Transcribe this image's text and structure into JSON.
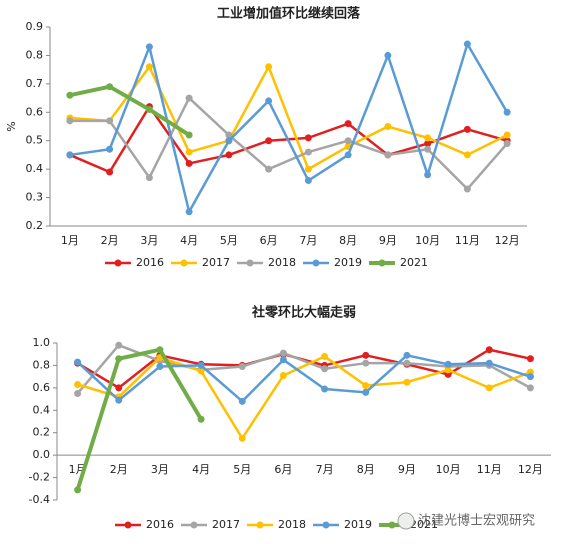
{
  "chart_data": [
    {
      "type": "line",
      "title": "工业增加值环比继续回落",
      "y_label": "%",
      "categories": [
        "1月",
        "2月",
        "3月",
        "4月",
        "5月",
        "6月",
        "7月",
        "8月",
        "9月",
        "10月",
        "11月",
        "12月"
      ],
      "ylim": [
        0.2,
        0.9
      ],
      "yticks": [
        0.2,
        0.3,
        0.4,
        0.5,
        0.6,
        0.7,
        0.8,
        0.9
      ],
      "series": [
        {
          "name": "2016",
          "color": "#e02020",
          "values": [
            0.45,
            0.39,
            0.62,
            0.42,
            0.45,
            0.5,
            0.51,
            0.56,
            0.45,
            0.49,
            0.54,
            0.5
          ]
        },
        {
          "name": "2017",
          "color": "#ffc000",
          "values": [
            0.58,
            0.57,
            0.76,
            0.46,
            0.5,
            0.76,
            0.4,
            0.48,
            0.55,
            0.51,
            0.45,
            0.52
          ]
        },
        {
          "name": "2018",
          "color": "#a5a5a5",
          "values": [
            0.57,
            0.57,
            0.37,
            0.65,
            0.52,
            0.4,
            0.46,
            0.5,
            0.45,
            0.47,
            0.33,
            0.49
          ]
        },
        {
          "name": "2019",
          "color": "#5b9bd5",
          "values": [
            0.45,
            0.47,
            0.83,
            0.25,
            0.5,
            0.64,
            0.36,
            0.45,
            0.8,
            0.38,
            0.84,
            0.6
          ]
        },
        {
          "name": "2021",
          "color": "#70ad47",
          "values": [
            0.66,
            0.69,
            0.61,
            0.52,
            null,
            null,
            null,
            null,
            null,
            null,
            null,
            null
          ]
        }
      ]
    },
    {
      "type": "line",
      "title": "社零环比大幅走弱",
      "categories": [
        "1月",
        "2月",
        "3月",
        "4月",
        "5月",
        "6月",
        "7月",
        "8月",
        "9月",
        "10月",
        "11月",
        "12月"
      ],
      "ylim": [
        -0.4,
        1.0
      ],
      "yticks": [
        -0.4,
        -0.2,
        {
          "value": 0,
          "label": "0.0"
        },
        0.2,
        0.4,
        0.6,
        0.8,
        {
          "value": 1,
          "label": "1.0"
        }
      ],
      "series": [
        {
          "name": "2016",
          "color": "#e02020",
          "values": [
            0.82,
            0.6,
            0.89,
            0.81,
            0.8,
            0.9,
            0.8,
            0.89,
            0.81,
            0.72,
            0.94,
            0.86
          ]
        },
        {
          "name": "2017",
          "color": "#a5a5a5",
          "values": [
            0.55,
            0.98,
            0.84,
            0.76,
            0.79,
            0.91,
            0.77,
            0.82,
            0.82,
            0.79,
            0.8,
            0.6
          ]
        },
        {
          "name": "2018",
          "color": "#ffc000",
          "values": [
            0.63,
            0.52,
            0.87,
            0.75,
            0.15,
            0.71,
            0.88,
            0.62,
            0.65,
            0.76,
            0.6,
            0.74
          ]
        },
        {
          "name": "2019",
          "color": "#5b9bd5",
          "values": [
            0.83,
            0.49,
            0.79,
            0.8,
            0.48,
            0.85,
            0.59,
            0.56,
            0.89,
            0.81,
            0.82,
            0.7
          ]
        },
        {
          "name": "2021",
          "color": "#70ad47",
          "values": [
            -0.31,
            0.86,
            0.94,
            0.32,
            null,
            null,
            null,
            null,
            null,
            null,
            null,
            null
          ]
        }
      ]
    }
  ],
  "watermark": "沈建光博士宏观研究"
}
